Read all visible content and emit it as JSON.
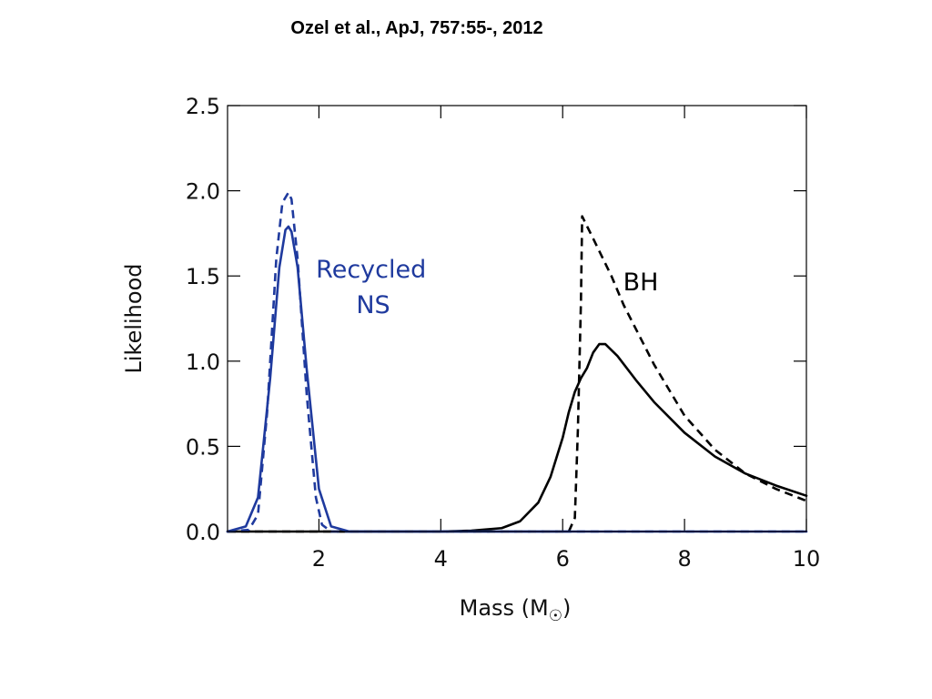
{
  "citation": "Ozel et al., ApJ, 757:55-, 2012",
  "colors": {
    "blue": "#1f3a9e",
    "black": "#000000"
  },
  "chart_data": {
    "type": "line",
    "title": "",
    "xlabel": "Mass",
    "xlabel_unit_base": "M",
    "xlabel_unit_symbol": "☉",
    "ylabel": "Likelihood",
    "xlim": [
      0.5,
      10
    ],
    "ylim": [
      0,
      2.5
    ],
    "xticks": [
      2,
      4,
      6,
      8,
      10
    ],
    "yticks": [
      0.0,
      0.5,
      1.0,
      1.5,
      2.0,
      2.5
    ],
    "xtick_labels": [
      "2",
      "4",
      "6",
      "8",
      "10"
    ],
    "ytick_labels": [
      "0.0",
      "0.5",
      "1.0",
      "1.5",
      "2.0",
      "2.5"
    ],
    "annotations": [
      {
        "lines": [
          "Recycled",
          "NS"
        ],
        "color": "blue"
      },
      {
        "lines": [
          "BH"
        ],
        "color": "black"
      }
    ],
    "series": [
      {
        "group": "Recycled NS",
        "style": "solid",
        "color": "blue",
        "x": [
          0.5,
          0.8,
          1.0,
          1.2,
          1.35,
          1.45,
          1.5,
          1.55,
          1.65,
          1.8,
          2.0,
          2.2,
          2.5,
          10
        ],
        "y": [
          0.0,
          0.03,
          0.2,
          0.9,
          1.55,
          1.77,
          1.79,
          1.76,
          1.55,
          0.95,
          0.25,
          0.03,
          0.0,
          0.0
        ]
      },
      {
        "group": "Recycled NS",
        "style": "dashed",
        "color": "blue",
        "x": [
          0.5,
          0.85,
          1.0,
          1.15,
          1.3,
          1.4,
          1.5,
          1.55,
          1.65,
          1.8,
          1.95,
          2.05,
          2.2,
          10
        ],
        "y": [
          0.0,
          0.01,
          0.1,
          0.7,
          1.6,
          1.93,
          1.99,
          1.95,
          1.6,
          0.8,
          0.2,
          0.04,
          0.0,
          0.0
        ]
      },
      {
        "group": "BH",
        "style": "solid",
        "color": "black",
        "x": [
          0.5,
          4.0,
          4.5,
          5.0,
          5.3,
          5.6,
          5.8,
          6.0,
          6.1,
          6.2,
          6.3,
          6.4,
          6.5,
          6.6,
          6.7,
          6.9,
          7.2,
          7.5,
          8.0,
          8.5,
          9.0,
          9.5,
          10.0
        ],
        "y": [
          0.0,
          0.0,
          0.005,
          0.02,
          0.06,
          0.17,
          0.32,
          0.55,
          0.7,
          0.82,
          0.9,
          0.96,
          1.05,
          1.1,
          1.1,
          1.03,
          0.89,
          0.76,
          0.58,
          0.44,
          0.34,
          0.27,
          0.21
        ]
      },
      {
        "group": "BH",
        "style": "dashed",
        "color": "black",
        "x": [
          0.5,
          6.1,
          6.2,
          6.25,
          6.3,
          6.32,
          6.5,
          6.8,
          7.0,
          7.5,
          8.0,
          8.5,
          9.0,
          9.5,
          10.0
        ],
        "y": [
          0.0,
          0.0,
          0.08,
          0.6,
          1.35,
          1.85,
          1.72,
          1.5,
          1.33,
          0.98,
          0.68,
          0.48,
          0.34,
          0.25,
          0.18
        ]
      }
    ]
  }
}
